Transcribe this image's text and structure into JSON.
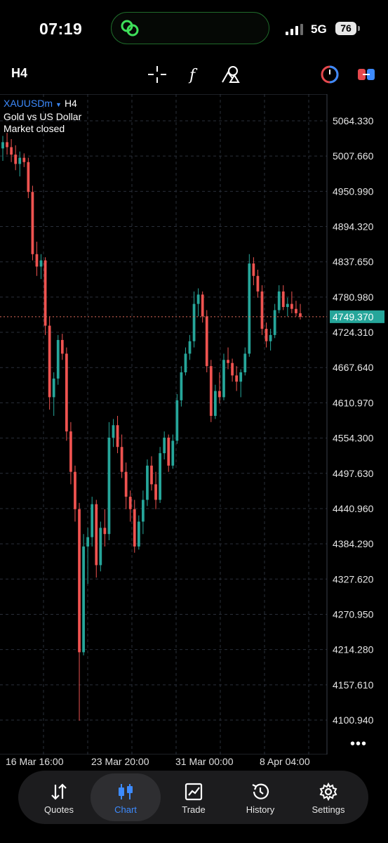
{
  "status_bar": {
    "time": "07:19",
    "network": "5G",
    "battery": "76"
  },
  "toolbar": {
    "timeframe": "H4",
    "icons": [
      "crosshair-icon",
      "function-icon",
      "objects-icon",
      "one-click-trading-icon",
      "quick-trade-icon"
    ]
  },
  "chart": {
    "symbol": "XAUUSDm",
    "timeframe": "H4",
    "description": "Gold vs US Dollar",
    "status": "Market closed",
    "current_price": "4749.370",
    "price_labels": [
      "5064.330",
      "5007.660",
      "4950.990",
      "4894.320",
      "4837.650",
      "4780.980",
      "4724.310",
      "4667.640",
      "4610.970",
      "4554.300",
      "4497.630",
      "4440.960",
      "4384.290",
      "4327.620",
      "4270.950",
      "4214.280",
      "4157.610",
      "4100.940"
    ],
    "time_labels": [
      "16 Mar 16:00",
      "23 Mar 20:00",
      "31 Mar 00:00",
      "8 Apr 04:00"
    ],
    "colors": {
      "bull": "#26a69a",
      "bear": "#ef5350",
      "price_line": "#e06c5a",
      "price_tag": "#26a69a",
      "grid": "#2a2f3a"
    }
  },
  "chart_data": {
    "type": "candlestick",
    "symbol": "XAUUSDm",
    "timeframe": "H4",
    "ylim": [
      4080,
      5100
    ],
    "current_price": 4749.37,
    "x": [
      "16 Mar 16:00",
      "23 Mar 20:00",
      "31 Mar 00:00",
      "8 Apr 04:00"
    ],
    "candles": [
      [
        5020,
        5040,
        5000,
        5030
      ],
      [
        5030,
        5045,
        5010,
        5022
      ],
      [
        5022,
        5035,
        4998,
        5010
      ],
      [
        5010,
        5025,
        4985,
        4995
      ],
      [
        4995,
        5015,
        4975,
        5005
      ],
      [
        5005,
        5012,
        4990,
        4998
      ],
      [
        4998,
        5005,
        4940,
        4950
      ],
      [
        4950,
        4960,
        4840,
        4850
      ],
      [
        4850,
        4870,
        4815,
        4830
      ],
      [
        4830,
        4850,
        4810,
        4840
      ],
      [
        4840,
        4845,
        4720,
        4735
      ],
      [
        4735,
        4750,
        4600,
        4620
      ],
      [
        4620,
        4660,
        4590,
        4650
      ],
      [
        4650,
        4720,
        4640,
        4712
      ],
      [
        4712,
        4722,
        4680,
        4690
      ],
      [
        4690,
        4700,
        4550,
        4565
      ],
      [
        4565,
        4580,
        4480,
        4500
      ],
      [
        4500,
        4510,
        4420,
        4440
      ],
      [
        4440,
        4450,
        4100,
        4210
      ],
      [
        4210,
        4400,
        4205,
        4380
      ],
      [
        4380,
        4410,
        4320,
        4395
      ],
      [
        4395,
        4460,
        4380,
        4448
      ],
      [
        4448,
        4455,
        4330,
        4350
      ],
      [
        4350,
        4420,
        4340,
        4410
      ],
      [
        4410,
        4440,
        4380,
        4400
      ],
      [
        4400,
        4580,
        4390,
        4555
      ],
      [
        4555,
        4585,
        4540,
        4575
      ],
      [
        4575,
        4590,
        4530,
        4540
      ],
      [
        4540,
        4560,
        4490,
        4500
      ],
      [
        4500,
        4515,
        4440,
        4460
      ],
      [
        4460,
        4470,
        4420,
        4440
      ],
      [
        4440,
        4455,
        4370,
        4380
      ],
      [
        4380,
        4430,
        4375,
        4420
      ],
      [
        4420,
        4470,
        4400,
        4455
      ],
      [
        4455,
        4520,
        4445,
        4510
      ],
      [
        4510,
        4525,
        4470,
        4480
      ],
      [
        4480,
        4500,
        4440,
        4455
      ],
      [
        4455,
        4540,
        4450,
        4530
      ],
      [
        4530,
        4565,
        4520,
        4555
      ],
      [
        4555,
        4560,
        4500,
        4510
      ],
      [
        4510,
        4560,
        4505,
        4550
      ],
      [
        4550,
        4625,
        4545,
        4615
      ],
      [
        4615,
        4670,
        4605,
        4660
      ],
      [
        4660,
        4700,
        4655,
        4690
      ],
      [
        4690,
        4720,
        4680,
        4710
      ],
      [
        4710,
        4790,
        4700,
        4770
      ],
      [
        4770,
        4795,
        4750,
        4785
      ],
      [
        4785,
        4790,
        4740,
        4750
      ],
      [
        4750,
        4760,
        4660,
        4670
      ],
      [
        4670,
        4680,
        4580,
        4590
      ],
      [
        4590,
        4640,
        4585,
        4630
      ],
      [
        4630,
        4660,
        4610,
        4620
      ],
      [
        4620,
        4690,
        4615,
        4680
      ],
      [
        4680,
        4700,
        4665,
        4675
      ],
      [
        4675,
        4682,
        4645,
        4655
      ],
      [
        4655,
        4670,
        4630,
        4645
      ],
      [
        4645,
        4665,
        4620,
        4660
      ],
      [
        4660,
        4700,
        4655,
        4690
      ],
      [
        4690,
        4850,
        4685,
        4835
      ],
      [
        4835,
        4845,
        4800,
        4815
      ],
      [
        4815,
        4825,
        4780,
        4790
      ],
      [
        4790,
        4800,
        4720,
        4730
      ],
      [
        4730,
        4740,
        4700,
        4710
      ],
      [
        4710,
        4730,
        4695,
        4720
      ],
      [
        4720,
        4770,
        4715,
        4760
      ],
      [
        4760,
        4800,
        4755,
        4790
      ],
      [
        4790,
        4800,
        4760,
        4765
      ],
      [
        4765,
        4780,
        4750,
        4770
      ],
      [
        4770,
        4790,
        4755,
        4762
      ],
      [
        4762,
        4775,
        4750,
        4755
      ],
      [
        4755,
        4770,
        4745,
        4749.37
      ]
    ],
    "candle_format": [
      "open",
      "high",
      "low",
      "close"
    ]
  },
  "bottom_nav": {
    "items": [
      {
        "label": "Quotes",
        "icon": "quotes-icon",
        "active": false
      },
      {
        "label": "Chart",
        "icon": "chart-candles-icon",
        "active": true
      },
      {
        "label": "Trade",
        "icon": "trade-icon",
        "active": false
      },
      {
        "label": "History",
        "icon": "history-icon",
        "active": false
      },
      {
        "label": "Settings",
        "icon": "settings-gear-icon",
        "active": false
      }
    ]
  }
}
